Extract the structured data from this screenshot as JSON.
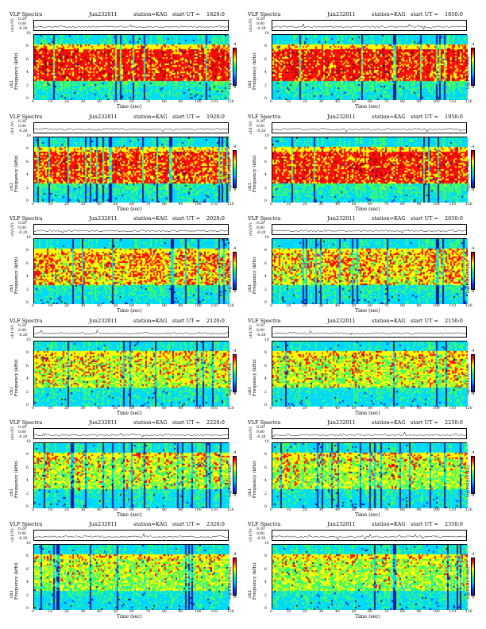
{
  "figure": {
    "title_left": "VLF Spectra",
    "station_label": "station=KAG",
    "start_label_prefix": "start UT =",
    "amp_ylabel": "ch1(V)",
    "freq_ylabel": "ch1\nFrequency (kHz)",
    "freq_ylabel_a": "ch1",
    "freq_ylabel_b": "Frequency (kHz)",
    "colorbar_label": "log(PSD)(V²/Hz)",
    "xlabel": "Time (sec)",
    "freq_ticks": [
      "0",
      "2",
      "4",
      "6",
      "8",
      "10"
    ],
    "amp_ticks": [
      "0.20",
      "0.00",
      "-0.20"
    ],
    "colorbar_ticks": [
      "-4",
      "-8"
    ]
  },
  "chart_data": [
    {
      "type": "heatmap",
      "date": "Jun232011",
      "start_ut": "1820:0",
      "x_ticks": [
        "0",
        "10",
        "20",
        "30",
        "40",
        "50",
        "60",
        "70",
        "80",
        "90",
        "100",
        "110",
        "120"
      ],
      "xlim": [
        0,
        120
      ],
      "ylim": [
        0,
        10
      ],
      "intensity": 0.85
    },
    {
      "type": "heatmap",
      "date": "Jun232011",
      "start_ut": "1850:0",
      "x_ticks": [
        "0",
        "10",
        "20",
        "30",
        "40",
        "50",
        "60",
        "70",
        "80",
        "90",
        "100",
        "110",
        "120"
      ],
      "xlim": [
        0,
        120
      ],
      "ylim": [
        0,
        10
      ],
      "intensity": 0.85
    },
    {
      "type": "heatmap",
      "date": "Jun232011",
      "start_ut": "1920:0",
      "x_ticks": [
        "0",
        "10",
        "20",
        "30",
        "40",
        "50",
        "60",
        "70",
        "80",
        "90",
        "100",
        "110",
        "120"
      ],
      "xlim": [
        0,
        120
      ],
      "ylim": [
        0,
        10
      ],
      "intensity": 0.8
    },
    {
      "type": "heatmap",
      "date": "Jun232011",
      "start_ut": "1950:0",
      "x_ticks": [
        "0",
        "10",
        "20",
        "30",
        "40",
        "50",
        "60",
        "70",
        "80",
        "90",
        "100",
        "110",
        "120"
      ],
      "xlim": [
        0,
        120
      ],
      "ylim": [
        0,
        10
      ],
      "intensity": 0.82
    },
    {
      "type": "heatmap",
      "date": "Jun232011",
      "start_ut": "2020:0",
      "x_ticks": [
        "0",
        "10",
        "20",
        "30",
        "40",
        "50",
        "60",
        "70",
        "80",
        "90",
        "100",
        "110",
        "120"
      ],
      "xlim": [
        0,
        120
      ],
      "ylim": [
        0,
        10
      ],
      "intensity": 0.6
    },
    {
      "type": "heatmap",
      "date": "Jun232011",
      "start_ut": "2050:0",
      "x_ticks": [
        "0",
        "10",
        "20",
        "30",
        "40",
        "50",
        "60",
        "70",
        "80",
        "90",
        "100",
        "110",
        "120"
      ],
      "xlim": [
        0,
        120
      ],
      "ylim": [
        0,
        10
      ],
      "intensity": 0.55
    },
    {
      "type": "heatmap",
      "date": "Jun232011",
      "start_ut": "2120:0",
      "x_ticks": [
        "0",
        "10",
        "20",
        "30",
        "40",
        "50",
        "60",
        "70",
        "80",
        "90",
        "100",
        "110",
        "120"
      ],
      "xlim": [
        0,
        120
      ],
      "ylim": [
        0,
        10
      ],
      "intensity": 0.45
    },
    {
      "type": "heatmap",
      "date": "Jun232011",
      "start_ut": "2150:0",
      "x_ticks": [
        "0",
        "10",
        "20",
        "30",
        "40",
        "50",
        "60",
        "70",
        "80",
        "90",
        "100",
        "110",
        "120"
      ],
      "xlim": [
        0,
        120
      ],
      "ylim": [
        0,
        10
      ],
      "intensity": 0.45
    },
    {
      "type": "heatmap",
      "date": "Jun232011",
      "start_ut": "2220:0",
      "x_ticks": [
        "0",
        "10",
        "20",
        "30",
        "40",
        "50",
        "60",
        "70",
        "80",
        "90",
        "100",
        "110",
        "120"
      ],
      "xlim": [
        0,
        120
      ],
      "ylim": [
        0,
        10
      ],
      "intensity": 0.4
    },
    {
      "type": "heatmap",
      "date": "Jun232011",
      "start_ut": "2250:0",
      "x_ticks": [
        "0",
        "10",
        "20",
        "30",
        "40",
        "50",
        "60",
        "70",
        "80",
        "90",
        "100",
        "110",
        "120"
      ],
      "xlim": [
        0,
        120
      ],
      "ylim": [
        0,
        10
      ],
      "intensity": 0.4
    },
    {
      "type": "heatmap",
      "date": "Jun232011",
      "start_ut": "2320:0",
      "x_ticks": [
        "0",
        "10",
        "20",
        "30",
        "40",
        "50",
        "60",
        "70",
        "80",
        "90",
        "100",
        "110",
        "120"
      ],
      "xlim": [
        0,
        120
      ],
      "ylim": [
        0,
        10
      ],
      "intensity": 0.35
    },
    {
      "type": "heatmap",
      "date": "Jun232011",
      "start_ut": "2350:0",
      "x_ticks": [
        "0",
        "10",
        "20",
        "30",
        "40",
        "50",
        "60",
        "70",
        "80",
        "90",
        "100",
        "110",
        "120"
      ],
      "xlim": [
        0,
        120
      ],
      "ylim": [
        0,
        10
      ],
      "intensity": 0.35
    }
  ],
  "colors": {
    "dark_blue": "#1a1aa0",
    "cyan": "#00d8ff",
    "green": "#40ff60",
    "yellow": "#ffff00",
    "red": "#ff1010",
    "dark_red": "#b00000"
  }
}
